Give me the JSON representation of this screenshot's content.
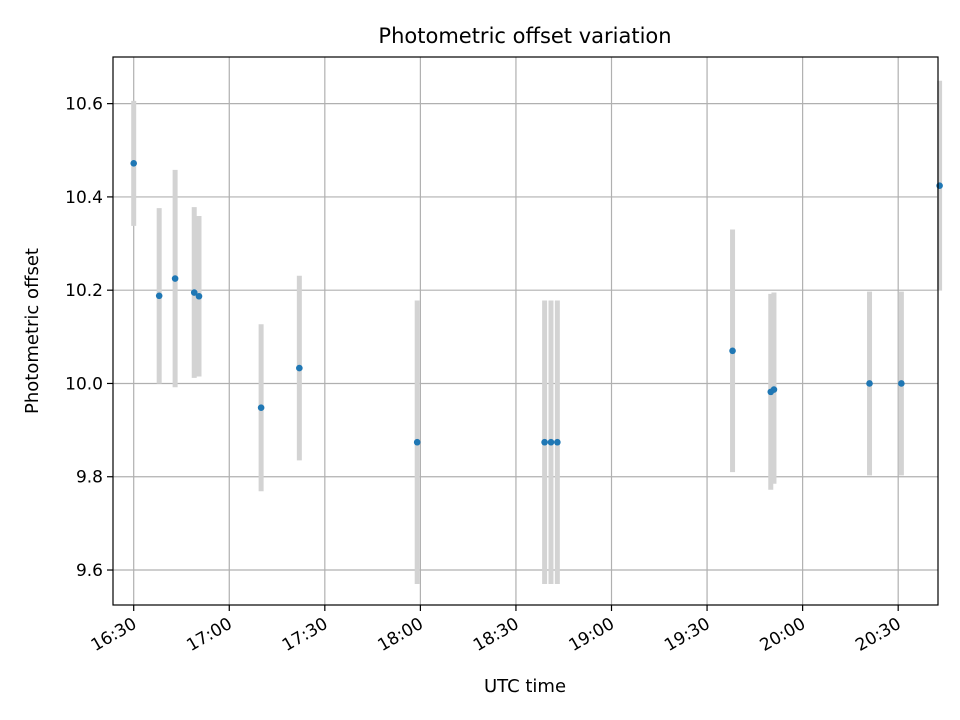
{
  "chart_data": {
    "type": "scatter",
    "title": "Photometric offset variation",
    "xlabel": "UTC time",
    "ylabel": "Photometric offset",
    "xlim": [
      "16:23:30",
      "20:42:30"
    ],
    "ylim": [
      9.525,
      10.7
    ],
    "grid": true,
    "x_ticks": [
      "16:30",
      "17:00",
      "17:30",
      "18:00",
      "18:30",
      "19:00",
      "19:30",
      "20:00",
      "20:30"
    ],
    "y_ticks": [
      9.6,
      9.8,
      10.0,
      10.2,
      10.4,
      10.6
    ],
    "y_tick_labels": [
      "9.6",
      "9.8",
      "10.0",
      "10.2",
      "10.4",
      "10.6"
    ],
    "colors": {
      "marker": "#1f77b4",
      "errorbar": "#d3d3d3",
      "grid": "#b0b0b0"
    },
    "series": [
      {
        "points": [
          {
            "x": "16:30",
            "y": 10.472,
            "ylow": 10.338,
            "yhigh": 10.606
          },
          {
            "x": "16:38",
            "y": 10.188,
            "ylow": 10.0,
            "yhigh": 10.376
          },
          {
            "x": "16:43",
            "y": 10.225,
            "ylow": 9.992,
            "yhigh": 10.458
          },
          {
            "x": "16:49",
            "y": 10.195,
            "ylow": 10.012,
            "yhigh": 10.378
          },
          {
            "x": "16:50:30",
            "y": 10.187,
            "ylow": 10.015,
            "yhigh": 10.359
          },
          {
            "x": "17:10",
            "y": 9.948,
            "ylow": 9.769,
            "yhigh": 10.127
          },
          {
            "x": "17:22",
            "y": 10.033,
            "ylow": 9.835,
            "yhigh": 10.231
          },
          {
            "x": "17:59",
            "y": 9.874,
            "ylow": 9.57,
            "yhigh": 10.178
          },
          {
            "x": "18:39",
            "y": 9.874,
            "ylow": 9.57,
            "yhigh": 10.178
          },
          {
            "x": "18:41",
            "y": 9.874,
            "ylow": 9.57,
            "yhigh": 10.178
          },
          {
            "x": "18:43",
            "y": 9.874,
            "ylow": 9.57,
            "yhigh": 10.178
          },
          {
            "x": "19:38",
            "y": 10.07,
            "ylow": 9.81,
            "yhigh": 10.33
          },
          {
            "x": "19:50",
            "y": 9.982,
            "ylow": 9.772,
            "yhigh": 10.192
          },
          {
            "x": "19:51",
            "y": 9.987,
            "ylow": 9.785,
            "yhigh": 10.195
          },
          {
            "x": "20:21",
            "y": 10.0,
            "ylow": 9.803,
            "yhigh": 10.197
          },
          {
            "x": "20:31",
            "y": 10.0,
            "ylow": 9.803,
            "yhigh": 10.197
          },
          {
            "x": "20:43",
            "y": 10.424,
            "ylow": 10.199,
            "yhigh": 10.649
          }
        ]
      }
    ]
  }
}
